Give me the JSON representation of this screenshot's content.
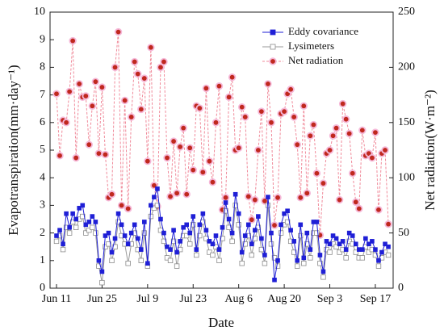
{
  "chart_data": {
    "type": "line",
    "x_label": "Date",
    "y_label": "Evapotranspiration(mm·day⁻¹)",
    "y2_label": "Net radiation(W·m⁻²)",
    "categories": [
      "Jun 11",
      null,
      null,
      null,
      null,
      null,
      null,
      null,
      null,
      null,
      null,
      null,
      null,
      null,
      "Jun 25",
      null,
      null,
      null,
      null,
      null,
      null,
      null,
      null,
      null,
      null,
      null,
      null,
      null,
      "Jul 9",
      null,
      null,
      null,
      null,
      null,
      null,
      null,
      null,
      null,
      null,
      null,
      null,
      null,
      "Jul 23",
      null,
      null,
      null,
      null,
      null,
      null,
      null,
      null,
      null,
      null,
      null,
      null,
      null,
      "Aug 6",
      null,
      null,
      null,
      null,
      null,
      null,
      null,
      null,
      null,
      null,
      null,
      null,
      null,
      "Aug 20",
      null,
      null,
      null,
      null,
      null,
      null,
      null,
      null,
      null,
      null,
      null,
      null,
      null,
      "Sep 3",
      null,
      null,
      null,
      null,
      null,
      null,
      null,
      null,
      null,
      null,
      null,
      null,
      null,
      "Sep 17",
      null,
      null,
      null,
      null
    ],
    "ylim": [
      0,
      10
    ],
    "yticks": [
      0,
      1,
      2,
      3,
      4,
      5,
      6,
      7,
      8,
      9,
      10
    ],
    "y2lim": [
      0,
      250
    ],
    "y2ticks": [
      0,
      50,
      100,
      150,
      200,
      250
    ],
    "legend": "upper right",
    "series": [
      {
        "name": "Eddy covariance",
        "color": "#1f1fd6",
        "values": [
          1.9,
          2.1,
          1.6,
          2.7,
          2.2,
          2.7,
          2.5,
          2.9,
          3.0,
          2.3,
          2.4,
          2.6,
          2.4,
          1.0,
          0.6,
          1.9,
          2.0,
          1.3,
          1.8,
          2.7,
          2.3,
          1.9,
          1.6,
          2.0,
          2.3,
          1.8,
          1.4,
          2.4,
          0.9,
          3.0,
          3.3,
          3.6,
          2.5,
          2.0,
          1.5,
          1.4,
          2.1,
          1.3,
          1.7,
          2.2,
          2.3,
          2.0,
          2.6,
          1.4,
          2.3,
          2.7,
          2.1,
          1.7,
          1.6,
          1.9,
          1.4,
          2.2,
          3.1,
          2.5,
          2.0,
          3.4,
          2.7,
          1.3,
          1.9,
          2.3,
          1.6,
          2.1,
          2.6,
          1.8,
          1.2,
          3.3,
          2.0,
          0.3,
          1.0,
          2.3,
          2.7,
          2.8,
          2.1,
          1.7,
          1.0,
          2.3,
          1.1,
          2.0,
          1.4,
          2.4,
          2.4,
          1.2,
          0.6,
          1.7,
          1.6,
          1.9,
          1.8,
          1.6,
          1.7,
          1.4,
          2.0,
          1.9,
          1.6,
          1.4,
          1.4,
          1.8,
          1.6,
          1.7,
          1.4,
          1.0,
          1.3,
          1.6,
          1.5
        ]
      },
      {
        "name": "Lysimeters",
        "color": "#8c8c8c",
        "values": [
          1.7,
          1.9,
          1.4,
          2.2,
          2.0,
          2.4,
          2.2,
          2.5,
          2.6,
          2.0,
          2.1,
          2.2,
          2.0,
          0.8,
          0.2,
          1.5,
          1.6,
          1.0,
          1.5,
          2.4,
          1.9,
          1.6,
          0.9,
          1.6,
          2.0,
          1.4,
          1.0,
          2.0,
          0.8,
          2.6,
          2.9,
          3.0,
          2.1,
          1.7,
          1.1,
          1.0,
          1.7,
          0.8,
          1.4,
          1.9,
          1.9,
          1.6,
          2.3,
          1.2,
          1.9,
          2.4,
          1.8,
          1.3,
          1.2,
          1.5,
          1.0,
          1.8,
          2.8,
          2.2,
          1.7,
          3.0,
          2.3,
          0.9,
          1.6,
          1.9,
          1.2,
          1.8,
          2.2,
          1.4,
          0.9,
          3.0,
          1.6,
          1.1,
          0.8,
          2.0,
          2.3,
          2.4,
          1.7,
          1.3,
          0.8,
          1.9,
          0.9,
          1.6,
          1.1,
          2.0,
          2.0,
          0.9,
          0.4,
          1.4,
          1.3,
          1.6,
          1.5,
          1.3,
          1.4,
          1.1,
          1.7,
          1.6,
          1.3,
          1.1,
          1.1,
          1.5,
          1.3,
          1.4,
          1.2,
          0.8,
          1.1,
          1.3,
          1.2
        ]
      },
      {
        "name": "Net radiation",
        "color": "#c0281e",
        "axis": "y2",
        "values": [
          176,
          120,
          152,
          150,
          178,
          224,
          118,
          185,
          173,
          174,
          130,
          165,
          187,
          122,
          182,
          121,
          82,
          85,
          200,
          232,
          75,
          170,
          72,
          155,
          205,
          194,
          162,
          190,
          115,
          218,
          93,
          74,
          200,
          205,
          118,
          83,
          133,
          86,
          128,
          145,
          85,
          127,
          107,
          165,
          163,
          105,
          181,
          115,
          96,
          150,
          183,
          71,
          82,
          173,
          191,
          125,
          127,
          164,
          155,
          83,
          62,
          80,
          125,
          160,
          79,
          185,
          150,
          57,
          82,
          158,
          160,
          176,
          180,
          155,
          130,
          82,
          165,
          86,
          138,
          148,
          104,
          48,
          95,
          122,
          125,
          138,
          145,
          80,
          167,
          153,
          140,
          104,
          78,
          72,
          143,
          120,
          122,
          118,
          141,
          71,
          122,
          125,
          58
        ]
      }
    ]
  }
}
